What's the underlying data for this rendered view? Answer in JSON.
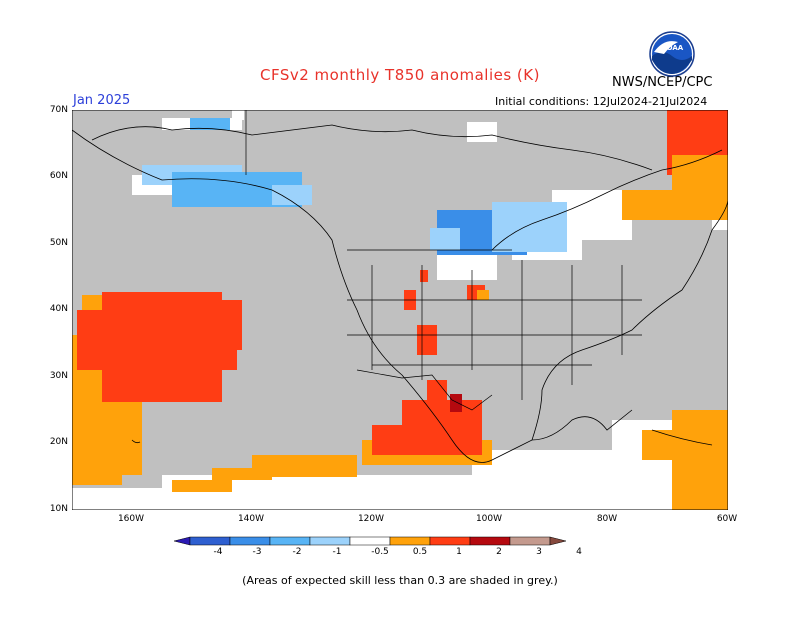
{
  "title": "CFSv2 monthly T850 anomalies (K)",
  "agency": "NWS/NCEP/CPC",
  "logo_text": "NOAA",
  "month": "Jan 2025",
  "initial_conditions": "Initial conditions: 12Jul2024-21Jul2024",
  "lat_labels": [
    "70N",
    "60N",
    "50N",
    "40N",
    "30N",
    "20N",
    "10N"
  ],
  "lon_labels": [
    "160W",
    "140W",
    "120W",
    "100W",
    "80W",
    "60W"
  ],
  "colorbar": {
    "labels": [
      "-4",
      "-3",
      "-2",
      "-1",
      "-0.5",
      "0.5",
      "1",
      "2",
      "3",
      "4"
    ],
    "colors": [
      "#2b1ab3",
      "#2e5fd0",
      "#3a8ee8",
      "#58b4f5",
      "#9cd2fb",
      "#ffffff",
      "#ffa20b",
      "#ff3d14",
      "#b5090f",
      "#c49a8e",
      "#86493d"
    ]
  },
  "colors": {
    "grey_low_skill": "#c0c0c0",
    "blue_light": "#9cd2fb",
    "blue_mid": "#58b4f5",
    "blue_strong": "#3a8ee8",
    "orange": "#ffa20b",
    "red_orange": "#ff3d14",
    "dark_red": "#b5090f"
  },
  "footnote": "(Areas of expected skill less than 0.3 are shaded in grey.)"
}
